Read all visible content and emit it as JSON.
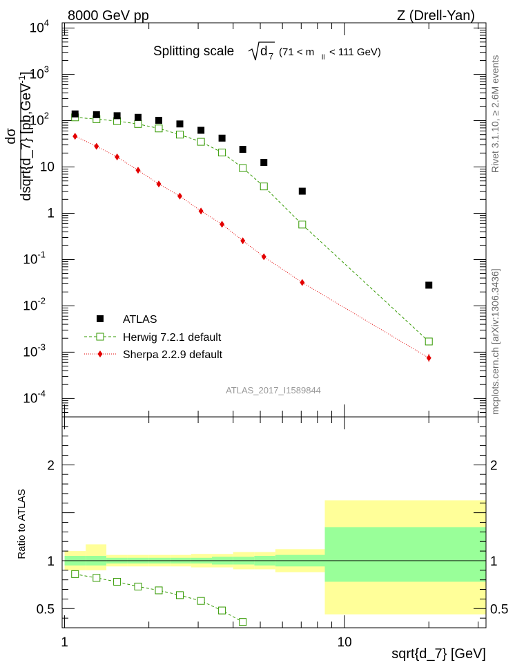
{
  "header": {
    "left": "8000 GeV pp",
    "right": "Z (Drell-Yan)",
    "title_main": "Splitting scale",
    "title_var": "d",
    "title_var_sub": "7",
    "title_range_a": "(71 < m",
    "title_range_sub": "ll",
    "title_range_b": "< 111 GeV)"
  },
  "side_labels": {
    "rivet": "Rivet 3.1.10, ≥ 2.6M events",
    "mcplots": "mcplots.cern.ch [arXiv:1306.3436]"
  },
  "watermark": "ATLAS_2017_I1589844",
  "colors": {
    "atlas": "#000000",
    "herwig": "#339900",
    "sherpa": "#e30000",
    "band_outer": "#ffff99",
    "band_inner": "#99ff99"
  },
  "chart_data": [
    {
      "type": "scatter",
      "id": "main",
      "ylabel_top": "dσ",
      "ylabel_bottom": "dsqrt{d_7} [pb,GeV",
      "ylabel_sup": "-1",
      "ylabel_close": "]",
      "yscale": "log",
      "xscale": "log",
      "xlim": [
        0.98,
        32
      ],
      "ylim": [
        4e-05,
        13000
      ],
      "y_tick_labels": [
        {
          "v": 0.0001,
          "base": "10",
          "exp": "-4"
        },
        {
          "v": 0.001,
          "base": "10",
          "exp": "-3"
        },
        {
          "v": 0.01,
          "base": "10",
          "exp": "-2"
        },
        {
          "v": 0.1,
          "base": "10",
          "exp": "-1"
        },
        {
          "v": 1,
          "base": "1",
          "exp": ""
        },
        {
          "v": 10,
          "base": "10",
          "exp": ""
        },
        {
          "v": 100,
          "base": "10",
          "exp": "2"
        },
        {
          "v": 1000,
          "base": "10",
          "exp": "3"
        },
        {
          "v": 10000,
          "base": "10",
          "exp": "4"
        }
      ],
      "legend": [
        {
          "key": "atlas",
          "label": "ATLAS"
        },
        {
          "key": "herwig",
          "label": "Herwig 7.2.1 default"
        },
        {
          "key": "sherpa",
          "label": "Sherpa 2.2.9 default"
        }
      ],
      "series": [
        {
          "key": "atlas",
          "name": "ATLAS",
          "x": [
            1.09,
            1.3,
            1.54,
            1.83,
            2.17,
            2.58,
            3.07,
            3.65,
            4.33,
            5.15,
            7.06,
            20.0
          ],
          "y": [
            140,
            135,
            128,
            118,
            102,
            85,
            62,
            42,
            24,
            12.5,
            3.0,
            0.028
          ]
        },
        {
          "key": "herwig",
          "name": "Herwig 7.2.1 default",
          "x": [
            1.09,
            1.3,
            1.54,
            1.83,
            2.17,
            2.58,
            3.07,
            3.65,
            4.33,
            5.15,
            7.06,
            20.0
          ],
          "y": [
            118,
            108,
            98,
            85,
            68,
            50,
            35,
            20.5,
            9.5,
            3.8,
            0.57,
            0.0017
          ]
        },
        {
          "key": "sherpa",
          "name": "Sherpa 2.2.9 default",
          "x": [
            1.09,
            1.3,
            1.54,
            1.83,
            2.17,
            2.58,
            3.07,
            3.65,
            4.33,
            5.15,
            7.06,
            20.0
          ],
          "y": [
            46,
            28,
            16.5,
            8.5,
            4.3,
            2.35,
            1.12,
            0.58,
            0.255,
            0.115,
            0.032,
            0.00075
          ],
          "yerr_last": [
            0.00062,
            0.00092
          ]
        }
      ]
    },
    {
      "type": "scatter",
      "id": "ratio",
      "ylabel": "Ratio to ATLAS",
      "xlabel": "sqrt{d_7} [GeV]",
      "xscale": "log",
      "xlim": [
        0.98,
        32
      ],
      "ylim": [
        0.3,
        2.5
      ],
      "y_tick_labels": [
        {
          "v": 0.5,
          "label": "0.5"
        },
        {
          "v": 1,
          "label": "1"
        },
        {
          "v": 2,
          "label": "2"
        }
      ],
      "x_tick_labels": [
        {
          "v": 1,
          "label": "1"
        },
        {
          "v": 10,
          "label": "10"
        }
      ],
      "bins": [
        1.0,
        1.19,
        1.41,
        1.68,
        2.0,
        2.38,
        2.83,
        3.36,
        4.0,
        4.76,
        5.66,
        8.5,
        32
      ],
      "band_outer": [
        [
          0.9,
          1.1
        ],
        [
          0.9,
          1.17
        ],
        [
          0.94,
          1.06
        ],
        [
          0.94,
          1.06
        ],
        [
          0.94,
          1.06
        ],
        [
          0.94,
          1.06
        ],
        [
          0.93,
          1.07
        ],
        [
          0.93,
          1.07
        ],
        [
          0.91,
          1.09
        ],
        [
          0.91,
          1.09
        ],
        [
          0.88,
          1.12
        ],
        [
          0.44,
          1.63
        ]
      ],
      "band_inner": [
        [
          0.95,
          1.05
        ],
        [
          0.95,
          1.05
        ],
        [
          0.97,
          1.03
        ],
        [
          0.97,
          1.03
        ],
        [
          0.97,
          1.03
        ],
        [
          0.97,
          1.03
        ],
        [
          0.97,
          1.03
        ],
        [
          0.96,
          1.04
        ],
        [
          0.96,
          1.04
        ],
        [
          0.95,
          1.05
        ],
        [
          0.94,
          1.06
        ],
        [
          0.78,
          1.35
        ]
      ],
      "herwig_ratio": {
        "x": [
          1.09,
          1.3,
          1.54,
          1.83,
          2.17,
          2.58,
          3.07,
          3.65,
          4.33
        ],
        "y": [
          0.86,
          0.82,
          0.78,
          0.73,
          0.69,
          0.64,
          0.58,
          0.48,
          0.36
        ]
      }
    }
  ]
}
